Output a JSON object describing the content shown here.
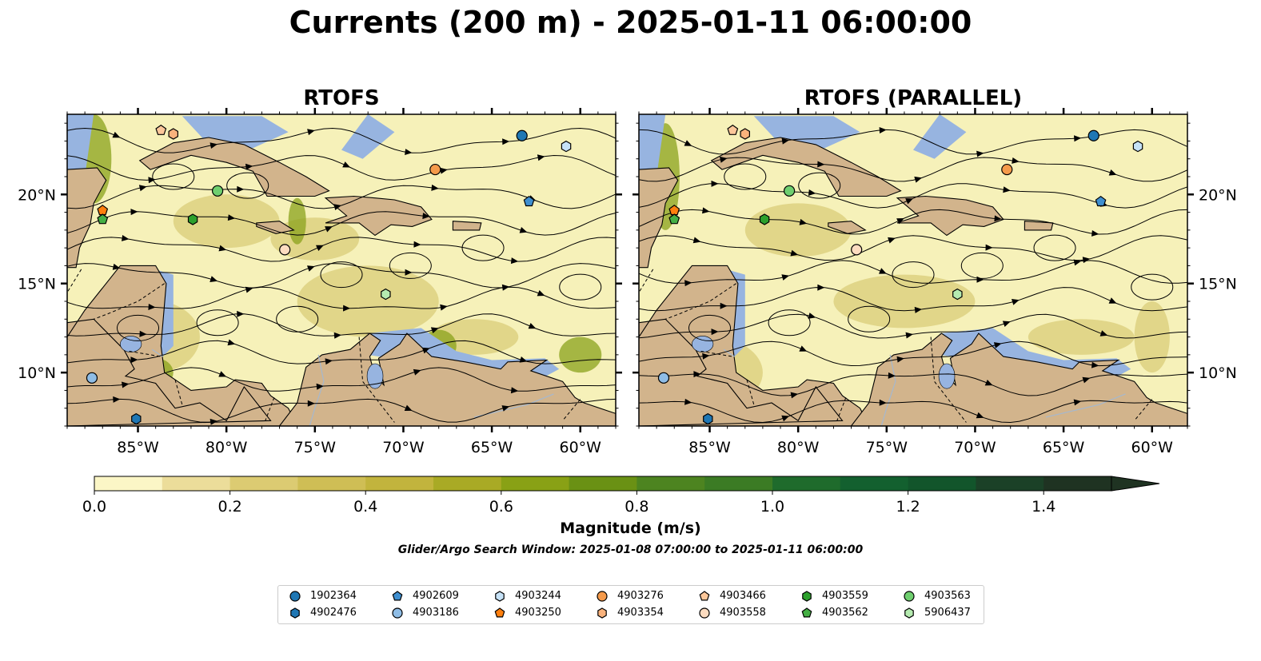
{
  "title": "Currents (200 m) - 2025-01-11 06:00:00",
  "panels": [
    {
      "title": "RTOFS",
      "tick_labels_side": "left"
    },
    {
      "title": "RTOFS (PARALLEL)",
      "tick_labels_side": "right"
    }
  ],
  "map": {
    "lon_range": [
      -89,
      -58
    ],
    "lat_range": [
      7,
      24.5
    ],
    "lon_ticks": [
      -85,
      -80,
      -75,
      -70,
      -65,
      -60
    ],
    "lon_tick_labels": [
      "85°W",
      "80°W",
      "75°W",
      "70°W",
      "65°W",
      "60°W"
    ],
    "lat_ticks": [
      10,
      15,
      20
    ],
    "lat_tick_labels": [
      "10°N",
      "15°N",
      "20°N"
    ],
    "colors": {
      "ocean_low": "#f6f1b9",
      "ocean_mid": "#d9cc7a",
      "ocean_high": "#8aa21c",
      "land": "#d2b48c",
      "shallow": "#97b4e0",
      "streamline": "#000000"
    }
  },
  "colorbar": {
    "label": "Magnitude (m/s)",
    "min": 0.0,
    "max": 1.5,
    "extend": "max",
    "ticks": [
      0.0,
      0.2,
      0.4,
      0.6,
      0.8,
      1.0,
      1.2,
      1.4
    ],
    "tick_labels": [
      "0.0",
      "0.2",
      "0.4",
      "0.6",
      "0.8",
      "1.0",
      "1.2",
      "1.4"
    ],
    "colors": [
      "#fbf6c6",
      "#ecdd9a",
      "#dccb72",
      "#cfbe55",
      "#c2b43d",
      "#a9aa25",
      "#89a115",
      "#6a9114",
      "#4d8420",
      "#3b7b24",
      "#1f6b2c",
      "#13602f",
      "#12552b",
      "#1b4127",
      "#1f3322"
    ]
  },
  "note": "Glider/Argo Search Window: 2025-01-08 07:00:00 to 2025-01-11 06:00:00",
  "floats": [
    {
      "id": "1902364",
      "marker": "circle",
      "color": "#1f77b4",
      "lon": -63.3,
      "lat": 23.3
    },
    {
      "id": "4902476",
      "marker": "hexagon",
      "color": "#1f77b4",
      "lon": -85.1,
      "lat": 7.4
    },
    {
      "id": "4902609",
      "marker": "pentagon",
      "color": "#3f8fd0",
      "lon": -62.9,
      "lat": 19.6
    },
    {
      "id": "4903186",
      "marker": "circle",
      "color": "#8fbde6",
      "lon": -87.6,
      "lat": 9.7
    },
    {
      "id": "4903244",
      "marker": "hexagon",
      "color": "#c6e2f7",
      "lon": -60.8,
      "lat": 22.7
    },
    {
      "id": "4903250",
      "marker": "pentagon",
      "color": "#ff7f0e",
      "lon": -87.0,
      "lat": 19.1
    },
    {
      "id": "4903276",
      "marker": "circle",
      "color": "#f59a4a",
      "lon": -68.2,
      "lat": 21.4
    },
    {
      "id": "4903354",
      "marker": "hexagon",
      "color": "#f9b27c",
      "lon": -83.0,
      "lat": 23.4
    },
    {
      "id": "4903466",
      "marker": "pentagon",
      "color": "#fcc79a",
      "lon": -83.7,
      "lat": 23.6
    },
    {
      "id": "4903558",
      "marker": "circle",
      "color": "#fddcc0",
      "lon": -76.7,
      "lat": 16.9
    },
    {
      "id": "4903559",
      "marker": "hexagon",
      "color": "#2ca02c",
      "lon": -81.9,
      "lat": 18.6
    },
    {
      "id": "4903562",
      "marker": "pentagon",
      "color": "#45b045",
      "lon": -87.0,
      "lat": 18.6
    },
    {
      "id": "4903563",
      "marker": "circle",
      "color": "#6fcf6f",
      "lon": -80.5,
      "lat": 20.2
    },
    {
      "id": "5906437",
      "marker": "hexagon",
      "color": "#b5ebb0",
      "lon": -71.0,
      "lat": 14.4
    }
  ]
}
